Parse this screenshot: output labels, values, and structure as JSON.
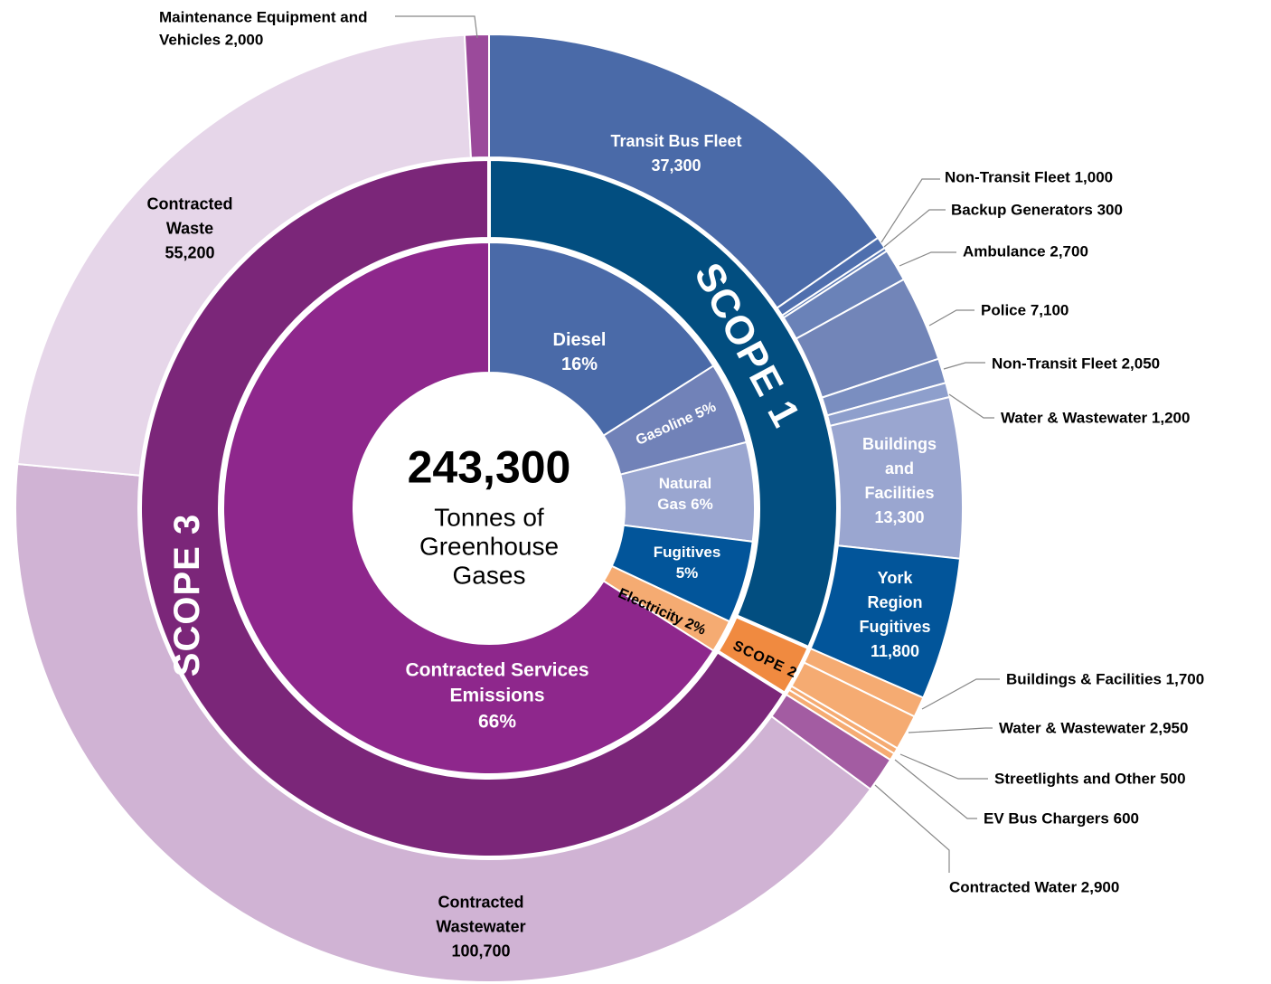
{
  "chart_data": {
    "type": "sunburst",
    "center": {
      "value": 243300,
      "label": "243,300",
      "text": "Tonnes of Greenhouse Gases"
    },
    "inner": [
      {
        "name": "Diesel",
        "value": 16,
        "value_label": "16%",
        "color": "#4a6aa8"
      },
      {
        "name": "Gasoline",
        "value": 5,
        "value_label": "5%",
        "color": "#7182b8"
      },
      {
        "name": "Natural Gas",
        "value": 6,
        "value_label": "6%",
        "color": "#9aa6d0"
      },
      {
        "name": "Fugitives",
        "value": 5,
        "value_label": "5%",
        "color": "#02559a"
      },
      {
        "name": "Electricity",
        "value": 2,
        "value_label": "2%",
        "color": "#f5ab72"
      },
      {
        "name": "Contracted Services Emissions",
        "value": 66,
        "value_label": "66%",
        "color": "#8e278c"
      }
    ],
    "scopes": [
      {
        "name": "SCOPE 1",
        "color": "#024e80",
        "children": [
          {
            "name": "Transit Bus Fleet",
            "value": 37300,
            "value_label": "37,300",
            "color": "#4a6aa8"
          },
          {
            "name": "Non-Transit Fleet",
            "value": 1000,
            "value_label": "1,000",
            "color": "#4f6fae"
          },
          {
            "name": "Backup Generators",
            "value": 300,
            "value_label": "300",
            "color": "#5a78b3"
          },
          {
            "name": "Ambulance",
            "value": 2700,
            "value_label": "2,700",
            "color": "#6a82b8"
          },
          {
            "name": "Police",
            "value": 7100,
            "value_label": "7,100",
            "color": "#7285b8"
          },
          {
            "name": "Non-Transit Fleet",
            "value": 2050,
            "value_label": "2,050",
            "color": "#7a8ec0"
          },
          {
            "name": "Water & Wastewater",
            "value": 1200,
            "value_label": "1,200",
            "color": "#8e9fcc"
          },
          {
            "name": "Buildings and Facilities",
            "value": 13300,
            "value_label": "13,300",
            "color": "#9aa6d0"
          },
          {
            "name": "York Region Fugitives",
            "value": 11800,
            "value_label": "11,800",
            "color": "#02559a"
          }
        ]
      },
      {
        "name": "SCOPE 2",
        "color": "#f08a40",
        "children": [
          {
            "name": "Buildings & Facilities",
            "value": 1700,
            "value_label": "1,700",
            "color": "#f5ab72"
          },
          {
            "name": "Water & Wastewater",
            "value": 2950,
            "value_label": "2,950",
            "color": "#f5ab72"
          },
          {
            "name": "Streetlights and Other",
            "value": 500,
            "value_label": "500",
            "color": "#f5ab72"
          },
          {
            "name": "EV Bus Chargers",
            "value": 600,
            "value_label": "600",
            "color": "#f5ab72"
          }
        ]
      },
      {
        "name": "SCOPE 3",
        "color": "#7b2679",
        "children": [
          {
            "name": "Contracted Water",
            "value": 2900,
            "value_label": "2,900",
            "color": "#a35ca2"
          },
          {
            "name": "Contracted Wastewater",
            "value": 100700,
            "value_label": "100,700",
            "color": "#d0b3d4"
          },
          {
            "name": "Contracted Waste",
            "value": 55200,
            "value_label": "55,200",
            "color": "#e6d6e9"
          },
          {
            "name": "Maintenance Equipment and Vehicles",
            "value": 2000,
            "value_label": "2,000",
            "color": "#9b4a9b"
          }
        ]
      }
    ]
  }
}
